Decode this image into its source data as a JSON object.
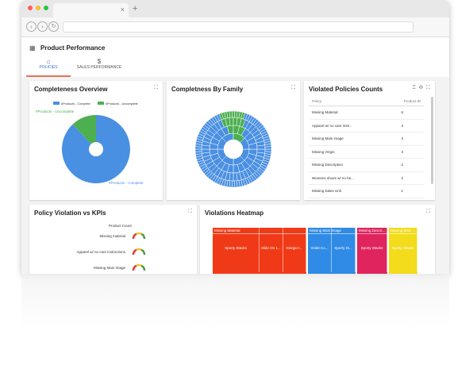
{
  "header": {
    "title": "Product Performance"
  },
  "tabs": [
    "POLICIES",
    "SALES PERFORMANCE"
  ],
  "completeness": {
    "title": "Completeness Overview",
    "legend": [
      "#Products - Complete",
      "#Products - Uncomplete"
    ],
    "values": [
      88,
      12
    ],
    "colors": [
      "#4a90e2",
      "#4caf50"
    ],
    "labels": [
      "#Products - Complete",
      "#Products - Uncomplete"
    ]
  },
  "family": {
    "title": "Completness By Family"
  },
  "violated": {
    "title": "Violated Policies Counts",
    "columns": [
      "Policy",
      "Product ID"
    ],
    "rows": [
      [
        "Missing Material",
        6
      ],
      [
        "Apparel w/ no care instr...",
        3
      ],
      [
        "Missing Main image",
        3
      ],
      [
        "Missing Origin",
        3
      ],
      [
        "Missing Description",
        2
      ],
      [
        "Womens shoes w/ no he...",
        2
      ],
      [
        "Missing Sales Unit",
        1
      ]
    ]
  },
  "kpis": {
    "title": "Policy Violation vs KPIs",
    "column": "Product Count",
    "rows": [
      "Missing material",
      "Apparel w/ no care instructions",
      "Missing Main Image"
    ]
  },
  "heatmap": {
    "title": "Violations Heatmap",
    "groups": [
      {
        "name": "Missing Material",
        "color": "#f03a17",
        "items": [
          "Sporty Stacks",
          "Slide On 1...",
          "Giorgio t..."
        ]
      },
      {
        "name": "Missing Main Image",
        "color": "#2f8be6",
        "items": [
          "Violet Co...",
          "Sporty St..."
        ]
      },
      {
        "name": "Missing Descri...",
        "color": "#e0245e",
        "items": [
          "Sporty Stacks"
        ]
      },
      {
        "name": "Missing Main ...",
        "color": "#f2dc1b",
        "items": [
          "Sporty Stacks"
        ]
      }
    ]
  }
}
